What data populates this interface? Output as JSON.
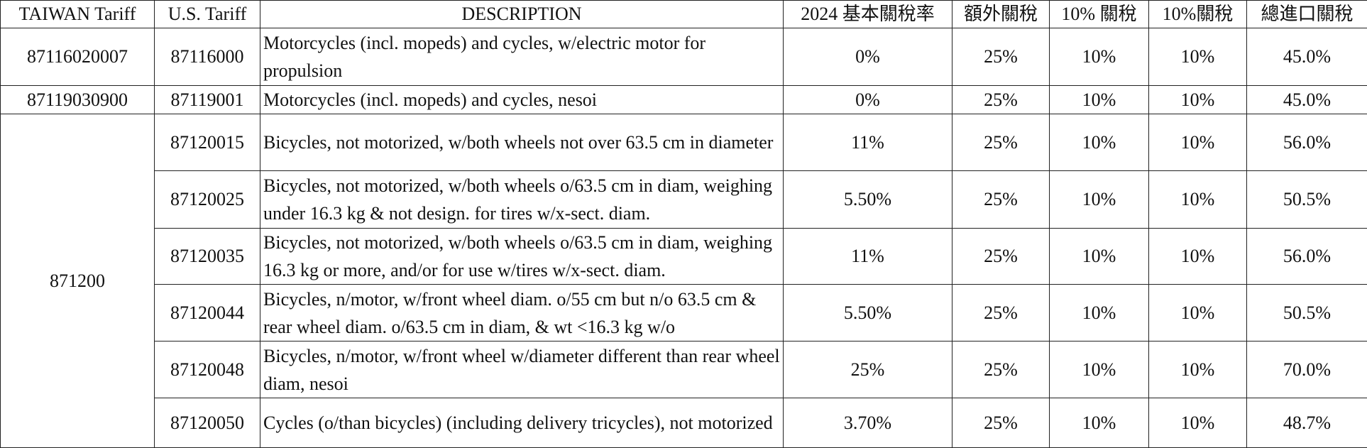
{
  "table": {
    "header": [
      "TAIWAN Tariff",
      "U.S. Tariff",
      "DESCRIPTION",
      "2024 基本關稅率",
      "額外關稅",
      "10% 關稅",
      "10%關稅",
      "總進口關稅"
    ],
    "groups": [
      {
        "taiwan_tariff": "87116020007",
        "rows": [
          [
            "87116000",
            "Motorcycles (incl. mopeds) and cycles, w/electric motor for propulsion",
            "0%",
            "25%",
            "10%",
            "10%",
            "45.0%"
          ]
        ]
      },
      {
        "taiwan_tariff": "87119030900",
        "rows": [
          [
            "87119001",
            "Motorcycles (incl. mopeds) and cycles, nesoi",
            "0%",
            "25%",
            "10%",
            "10%",
            "45.0%"
          ]
        ]
      },
      {
        "taiwan_tariff": "871200",
        "rows": [
          [
            "87120015",
            "Bicycles, not motorized, w/both wheels not over 63.5 cm in diameter",
            "11%",
            "25%",
            "10%",
            "10%",
            "56.0%"
          ],
          [
            "87120025",
            "Bicycles, not motorized, w/both wheels o/63.5 cm in diam, weighing under 16.3 kg & not design. for tires w/x-sect. diam.",
            "5.50%",
            "25%",
            "10%",
            "10%",
            "50.5%"
          ],
          [
            "87120035",
            "Bicycles, not motorized, w/both wheels o/63.5 cm in diam, weighing 16.3 kg or more, and/or for use w/tires w/x-sect. diam.",
            "11%",
            "25%",
            "10%",
            "10%",
            "56.0%"
          ],
          [
            "87120044",
            "Bicycles, n/motor, w/front wheel diam. o/55 cm but n/o 63.5 cm & rear wheel diam. o/63.5 cm in diam, & wt <16.3 kg w/o",
            "5.50%",
            "25%",
            "10%",
            "10%",
            "50.5%"
          ],
          [
            "87120048",
            "Bicycles, n/motor, w/front wheel w/diameter different than rear wheel diam, nesoi",
            "25%",
            "25%",
            "10%",
            "10%",
            "70.0%"
          ],
          [
            "87120050",
            "Cycles (o/than bicycles) (including delivery tricycles), not motorized",
            "3.70%",
            "25%",
            "10%",
            "10%",
            "48.7%"
          ]
        ]
      }
    ]
  }
}
